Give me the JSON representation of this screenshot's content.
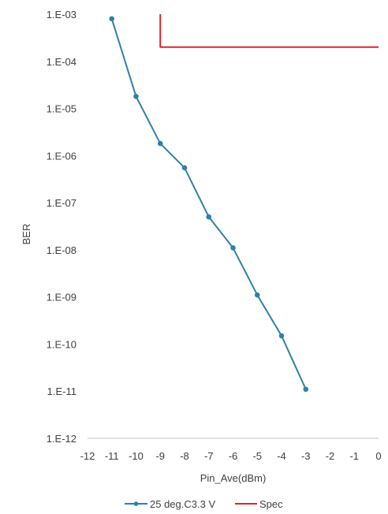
{
  "chart_data": {
    "type": "line",
    "xlabel": "Pin_Ave(dBm)",
    "ylabel": "BER",
    "xlim": [
      -12,
      0
    ],
    "ylim": [
      1e-12,
      0.001
    ],
    "yscale": "log",
    "grid": false,
    "legend_position": "bottom",
    "x_ticks": [
      {
        "value": -12,
        "label": "-12"
      },
      {
        "value": -11,
        "label": "-11"
      },
      {
        "value": -10,
        "label": "-10"
      },
      {
        "value": -9,
        "label": "-9"
      },
      {
        "value": -8,
        "label": "-8"
      },
      {
        "value": -7,
        "label": "-7"
      },
      {
        "value": -6,
        "label": "-6"
      },
      {
        "value": -5,
        "label": "-5"
      },
      {
        "value": -4,
        "label": "-4"
      },
      {
        "value": -3,
        "label": "-3"
      },
      {
        "value": -2,
        "label": "-2"
      },
      {
        "value": -1,
        "label": "-1"
      },
      {
        "value": 0,
        "label": "0"
      }
    ],
    "y_ticks": [
      {
        "value": 0.001,
        "label": "1.E-03"
      },
      {
        "value": 0.0001,
        "label": "1.E-04"
      },
      {
        "value": 1e-05,
        "label": "1.E-05"
      },
      {
        "value": 1e-06,
        "label": "1.E-06"
      },
      {
        "value": 1e-07,
        "label": "1.E-07"
      },
      {
        "value": 1e-08,
        "label": "1.E-08"
      },
      {
        "value": 1e-09,
        "label": "1.E-09"
      },
      {
        "value": 1e-10,
        "label": "1.E-10"
      },
      {
        "value": 1e-11,
        "label": "1.E-11"
      },
      {
        "value": 1e-12,
        "label": "1.E-12"
      }
    ],
    "series": [
      {
        "name": "25 deg.C3.3 V",
        "color": "#2f80a8",
        "markers": true,
        "points": [
          {
            "x": -11,
            "y": 0.0008
          },
          {
            "x": -10,
            "y": 1.8e-05
          },
          {
            "x": -9,
            "y": 1.8e-06
          },
          {
            "x": -8,
            "y": 5.5e-07
          },
          {
            "x": -7,
            "y": 5e-08
          },
          {
            "x": -6,
            "y": 1.1e-08
          },
          {
            "x": -5,
            "y": 1.1e-09
          },
          {
            "x": -4,
            "y": 1.5e-10
          },
          {
            "x": -3,
            "y": 1.1e-11
          }
        ]
      },
      {
        "name": "Spec",
        "color": "#d62728",
        "markers": false,
        "points": [
          {
            "x": -9,
            "y": 0.001
          },
          {
            "x": -9,
            "y": 0.0002
          },
          {
            "x": 0,
            "y": 0.0002
          }
        ]
      }
    ]
  }
}
